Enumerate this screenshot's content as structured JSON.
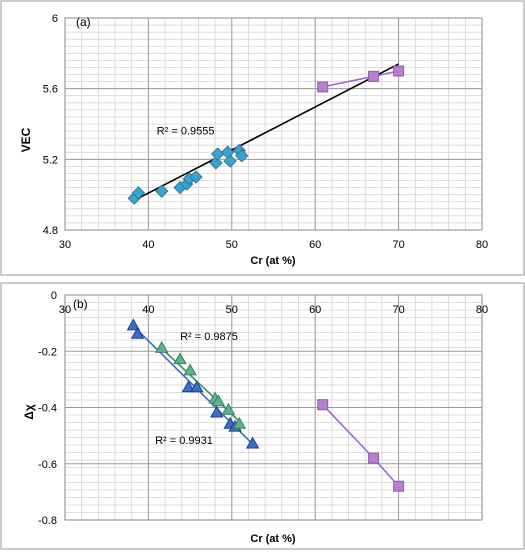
{
  "chart_data": [
    {
      "type": "scatter",
      "panel_label": "(a)",
      "xlabel": "Cr (at %)",
      "ylabel": "VEC",
      "xlim": [
        30,
        80
      ],
      "ylim": [
        4.8,
        6
      ],
      "xticks": [
        30,
        40,
        50,
        60,
        70,
        80
      ],
      "yticks": [
        4.8,
        5.2,
        5.6,
        6
      ],
      "xtick_labels": [
        "30",
        "40",
        "50",
        "60",
        "70",
        "80"
      ],
      "ytick_labels": [
        "4.8",
        "5.2",
        "5.6",
        "6"
      ],
      "grid": true,
      "annotations": [
        {
          "text": "R² = 0.9555",
          "x": 41,
          "y": 5.34
        }
      ],
      "series": [
        {
          "marker": "diamond",
          "color": "#2ea8d6",
          "edge": "#4f6e86",
          "points": [
            [
              38.3,
              4.98
            ],
            [
              38.8,
              5.01
            ],
            [
              41.6,
              5.02
            ],
            [
              43.8,
              5.04
            ],
            [
              44.6,
              5.06
            ],
            [
              44.9,
              5.09
            ],
            [
              45.7,
              5.1
            ],
            [
              48.1,
              5.18
            ],
            [
              48.3,
              5.23
            ],
            [
              49.5,
              5.24
            ],
            [
              49.8,
              5.19
            ],
            [
              50.9,
              5.25
            ],
            [
              51.2,
              5.22
            ]
          ]
        },
        {
          "marker": "square",
          "color": "#b77fd4",
          "edge": "#8b5fa8",
          "line": "#a066c8",
          "points": [
            [
              60.9,
              5.61
            ],
            [
              67.0,
              5.67
            ],
            [
              70.0,
              5.7
            ]
          ]
        }
      ],
      "fits": [
        {
          "color": "#000000",
          "from": [
            38.4,
            4.97
          ],
          "to": [
            70.0,
            5.74
          ]
        }
      ]
    },
    {
      "type": "scatter",
      "panel_label": "(b)",
      "xlabel": "Cr (at %)",
      "ylabel": "Δχ",
      "xlim": [
        30,
        80
      ],
      "ylim": [
        -0.8,
        0
      ],
      "xticks": [
        30,
        40,
        50,
        60,
        70,
        80
      ],
      "yticks": [
        0,
        -0.2,
        -0.4,
        -0.6,
        -0.8
      ],
      "xtick_labels": [
        "30",
        "40",
        "50",
        "60",
        "70",
        "80"
      ],
      "ytick_labels": [
        "0",
        "-0.2",
        "-0.4",
        "-0.6",
        "-0.8"
      ],
      "grid": true,
      "annotations": [
        {
          "text": "R² = 0.9875",
          "x": 43.8,
          "y": -0.16
        },
        {
          "text": "R² = 0.9931",
          "x": 40.8,
          "y": -0.53
        }
      ],
      "series": [
        {
          "marker": "triangle",
          "color": "#3a6fc4",
          "edge": "#1f3f82",
          "points": [
            [
              38.2,
              -0.11
            ],
            [
              38.7,
              -0.14
            ],
            [
              44.8,
              -0.33
            ],
            [
              45.8,
              -0.33
            ],
            [
              48.2,
              -0.42
            ],
            [
              49.8,
              -0.46
            ],
            [
              50.4,
              -0.47
            ],
            [
              52.5,
              -0.53
            ]
          ]
        },
        {
          "marker": "triangle",
          "color": "#5ab48c",
          "edge": "#3d7c63",
          "points": [
            [
              41.6,
              -0.19
            ],
            [
              43.8,
              -0.23
            ],
            [
              45.0,
              -0.27
            ],
            [
              48.0,
              -0.37
            ],
            [
              48.4,
              -0.38
            ],
            [
              49.6,
              -0.41
            ],
            [
              50.9,
              -0.46
            ]
          ]
        },
        {
          "marker": "square",
          "color": "#b77fd4",
          "edge": "#8b5fa8",
          "line": "#a066c8",
          "points": [
            [
              60.9,
              -0.39
            ],
            [
              67.0,
              -0.58
            ],
            [
              70.0,
              -0.68
            ]
          ]
        }
      ],
      "fits": [
        {
          "color": "#3a6fc4",
          "from": [
            38.2,
            -0.11
          ],
          "to": [
            52.5,
            -0.53
          ]
        },
        {
          "color": "#3d8c6b",
          "from": [
            41.6,
            -0.19
          ],
          "to": [
            51.3,
            -0.46
          ]
        }
      ]
    }
  ]
}
